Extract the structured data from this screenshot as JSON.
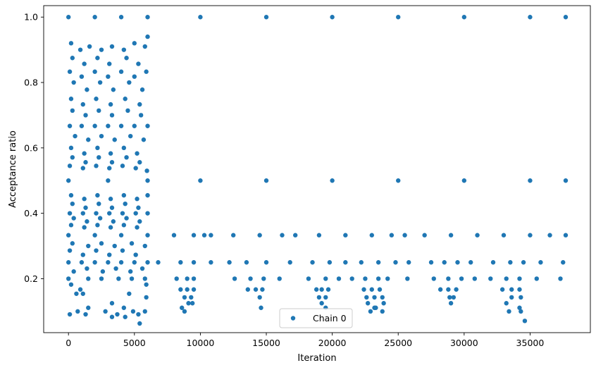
{
  "chart_data": {
    "type": "scatter",
    "xlabel": "Iteration",
    "ylabel": "Acceptance ratio",
    "xlim": [
      -1880,
      39570
    ],
    "ylim": [
      0.035,
      1.035
    ],
    "x_ticks": [
      0,
      5000,
      10000,
      15000,
      20000,
      25000,
      30000,
      35000
    ],
    "x_tick_labels": [
      "0",
      "5000",
      "10000",
      "15000",
      "20000",
      "25000",
      "30000",
      "35000"
    ],
    "y_ticks": [
      0.2,
      0.4,
      0.6,
      0.8,
      1.0
    ],
    "y_tick_labels": [
      "0.2",
      "0.4",
      "0.6",
      "0.8",
      "1.0"
    ],
    "grid": false,
    "legend_position": "lower center",
    "series": [
      {
        "name": "Chain 0",
        "color": "#1f77b4",
        "marker": "circle",
        "points": [
          [
            0,
            1.0
          ],
          [
            2000,
            1.0
          ],
          [
            4000,
            1.0
          ],
          [
            6000,
            1.0
          ],
          [
            10000,
            1.0
          ],
          [
            15000,
            1.0
          ],
          [
            20000,
            1.0
          ],
          [
            25000,
            1.0
          ],
          [
            30000,
            1.0
          ],
          [
            35000,
            1.0
          ],
          [
            37700,
            1.0
          ],
          [
            200,
            0.92
          ],
          [
            900,
            0.9
          ],
          [
            1600,
            0.91
          ],
          [
            2500,
            0.9
          ],
          [
            3300,
            0.91
          ],
          [
            4200,
            0.9
          ],
          [
            5000,
            0.92
          ],
          [
            5800,
            0.91
          ],
          [
            6000,
            0.94
          ],
          [
            300,
            0.875
          ],
          [
            1200,
            0.857
          ],
          [
            2200,
            0.875
          ],
          [
            3100,
            0.857
          ],
          [
            4400,
            0.875
          ],
          [
            5300,
            0.857
          ],
          [
            100,
            0.833
          ],
          [
            1000,
            0.818
          ],
          [
            2000,
            0.833
          ],
          [
            3000,
            0.818
          ],
          [
            4000,
            0.833
          ],
          [
            5000,
            0.818
          ],
          [
            5900,
            0.833
          ],
          [
            400,
            0.8
          ],
          [
            1400,
            0.778
          ],
          [
            2400,
            0.8
          ],
          [
            3400,
            0.778
          ],
          [
            4600,
            0.8
          ],
          [
            5600,
            0.778
          ],
          [
            200,
            0.75
          ],
          [
            1100,
            0.733
          ],
          [
            2100,
            0.75
          ],
          [
            3200,
            0.733
          ],
          [
            4300,
            0.75
          ],
          [
            5400,
            0.733
          ],
          [
            300,
            0.714
          ],
          [
            1300,
            0.7
          ],
          [
            2300,
            0.714
          ],
          [
            3300,
            0.7
          ],
          [
            4500,
            0.714
          ],
          [
            5500,
            0.7
          ],
          [
            100,
            0.667
          ],
          [
            1000,
            0.667
          ],
          [
            2000,
            0.667
          ],
          [
            3000,
            0.667
          ],
          [
            4000,
            0.667
          ],
          [
            5000,
            0.667
          ],
          [
            6000,
            0.667
          ],
          [
            500,
            0.636
          ],
          [
            1500,
            0.625
          ],
          [
            2500,
            0.636
          ],
          [
            3500,
            0.625
          ],
          [
            4700,
            0.636
          ],
          [
            5700,
            0.625
          ],
          [
            200,
            0.6
          ],
          [
            1200,
            0.583
          ],
          [
            2200,
            0.6
          ],
          [
            3200,
            0.583
          ],
          [
            4200,
            0.6
          ],
          [
            5200,
            0.583
          ],
          [
            300,
            0.571
          ],
          [
            1300,
            0.556
          ],
          [
            2300,
            0.571
          ],
          [
            3300,
            0.556
          ],
          [
            4400,
            0.571
          ],
          [
            5400,
            0.556
          ],
          [
            100,
            0.545
          ],
          [
            1100,
            0.538
          ],
          [
            2100,
            0.545
          ],
          [
            3100,
            0.538
          ],
          [
            4100,
            0.545
          ],
          [
            5100,
            0.538
          ],
          [
            5950,
            0.53
          ],
          [
            0,
            0.5
          ],
          [
            3000,
            0.5
          ],
          [
            6000,
            0.5
          ],
          [
            10000,
            0.5
          ],
          [
            15000,
            0.5
          ],
          [
            20000,
            0.5
          ],
          [
            25000,
            0.5
          ],
          [
            30000,
            0.5
          ],
          [
            35000,
            0.5
          ],
          [
            37700,
            0.5
          ],
          [
            200,
            0.455
          ],
          [
            1200,
            0.444
          ],
          [
            2200,
            0.455
          ],
          [
            3200,
            0.444
          ],
          [
            4200,
            0.455
          ],
          [
            5200,
            0.444
          ],
          [
            6000,
            0.455
          ],
          [
            300,
            0.429
          ],
          [
            1300,
            0.417
          ],
          [
            2300,
            0.429
          ],
          [
            3300,
            0.417
          ],
          [
            4300,
            0.429
          ],
          [
            5300,
            0.417
          ],
          [
            100,
            0.4
          ],
          [
            1100,
            0.4
          ],
          [
            2100,
            0.4
          ],
          [
            3100,
            0.4
          ],
          [
            4100,
            0.4
          ],
          [
            5100,
            0.4
          ],
          [
            6000,
            0.4
          ],
          [
            400,
            0.385
          ],
          [
            1400,
            0.375
          ],
          [
            2400,
            0.385
          ],
          [
            3400,
            0.375
          ],
          [
            4400,
            0.385
          ],
          [
            5400,
            0.375
          ],
          [
            200,
            0.364
          ],
          [
            1200,
            0.357
          ],
          [
            2200,
            0.364
          ],
          [
            3200,
            0.357
          ],
          [
            4200,
            0.364
          ],
          [
            5200,
            0.357
          ],
          [
            0,
            0.333
          ],
          [
            2000,
            0.333
          ],
          [
            4000,
            0.333
          ],
          [
            6000,
            0.333
          ],
          [
            8000,
            0.333
          ],
          [
            9500,
            0.333
          ],
          [
            10300,
            0.333
          ],
          [
            10800,
            0.333
          ],
          [
            12500,
            0.333
          ],
          [
            14500,
            0.333
          ],
          [
            16200,
            0.333
          ],
          [
            17200,
            0.333
          ],
          [
            19000,
            0.333
          ],
          [
            21000,
            0.333
          ],
          [
            23000,
            0.333
          ],
          [
            24500,
            0.333
          ],
          [
            25500,
            0.333
          ],
          [
            27000,
            0.333
          ],
          [
            29000,
            0.333
          ],
          [
            31000,
            0.333
          ],
          [
            33000,
            0.333
          ],
          [
            35000,
            0.333
          ],
          [
            36500,
            0.333
          ],
          [
            37700,
            0.333
          ],
          [
            300,
            0.308
          ],
          [
            1500,
            0.3
          ],
          [
            2500,
            0.308
          ],
          [
            3500,
            0.3
          ],
          [
            4800,
            0.308
          ],
          [
            5800,
            0.3
          ],
          [
            100,
            0.286
          ],
          [
            1100,
            0.273
          ],
          [
            2100,
            0.286
          ],
          [
            3100,
            0.273
          ],
          [
            4100,
            0.286
          ],
          [
            5100,
            0.273
          ],
          [
            0,
            0.25
          ],
          [
            1000,
            0.25
          ],
          [
            2000,
            0.25
          ],
          [
            3000,
            0.25
          ],
          [
            4000,
            0.25
          ],
          [
            5000,
            0.25
          ],
          [
            6000,
            0.25
          ],
          [
            6800,
            0.25
          ],
          [
            8500,
            0.25
          ],
          [
            9500,
            0.25
          ],
          [
            10800,
            0.25
          ],
          [
            12200,
            0.25
          ],
          [
            13500,
            0.25
          ],
          [
            15000,
            0.25
          ],
          [
            16800,
            0.25
          ],
          [
            18500,
            0.25
          ],
          [
            19800,
            0.25
          ],
          [
            21000,
            0.25
          ],
          [
            22200,
            0.25
          ],
          [
            23500,
            0.25
          ],
          [
            24800,
            0.25
          ],
          [
            25800,
            0.25
          ],
          [
            27500,
            0.25
          ],
          [
            28500,
            0.25
          ],
          [
            29500,
            0.25
          ],
          [
            30500,
            0.25
          ],
          [
            32200,
            0.25
          ],
          [
            33500,
            0.25
          ],
          [
            34500,
            0.25
          ],
          [
            35800,
            0.25
          ],
          [
            37500,
            0.25
          ],
          [
            400,
            0.222
          ],
          [
            1400,
            0.231
          ],
          [
            2600,
            0.222
          ],
          [
            3600,
            0.231
          ],
          [
            4700,
            0.222
          ],
          [
            5600,
            0.231
          ],
          [
            0,
            0.2
          ],
          [
            1500,
            0.2
          ],
          [
            2500,
            0.2
          ],
          [
            3800,
            0.2
          ],
          [
            4800,
            0.2
          ],
          [
            5800,
            0.2
          ],
          [
            8200,
            0.2
          ],
          [
            9000,
            0.2
          ],
          [
            9500,
            0.2
          ],
          [
            12600,
            0.2
          ],
          [
            13800,
            0.2
          ],
          [
            14800,
            0.2
          ],
          [
            16000,
            0.2
          ],
          [
            18200,
            0.2
          ],
          [
            19500,
            0.2
          ],
          [
            20500,
            0.2
          ],
          [
            21500,
            0.2
          ],
          [
            22500,
            0.2
          ],
          [
            23500,
            0.2
          ],
          [
            24200,
            0.2
          ],
          [
            25700,
            0.2
          ],
          [
            27700,
            0.2
          ],
          [
            28800,
            0.2
          ],
          [
            29800,
            0.2
          ],
          [
            30800,
            0.2
          ],
          [
            32000,
            0.2
          ],
          [
            33200,
            0.2
          ],
          [
            34200,
            0.2
          ],
          [
            35500,
            0.2
          ],
          [
            37300,
            0.2
          ],
          [
            200,
            0.182
          ],
          [
            5900,
            0.182
          ],
          [
            900,
            0.167
          ],
          [
            8500,
            0.167
          ],
          [
            9000,
            0.167
          ],
          [
            9500,
            0.167
          ],
          [
            13600,
            0.167
          ],
          [
            14200,
            0.167
          ],
          [
            14700,
            0.167
          ],
          [
            18800,
            0.167
          ],
          [
            19200,
            0.167
          ],
          [
            19700,
            0.167
          ],
          [
            22400,
            0.167
          ],
          [
            23000,
            0.167
          ],
          [
            23600,
            0.167
          ],
          [
            28200,
            0.167
          ],
          [
            28800,
            0.167
          ],
          [
            29400,
            0.167
          ],
          [
            32900,
            0.167
          ],
          [
            33600,
            0.167
          ],
          [
            34200,
            0.167
          ],
          [
            600,
            0.154
          ],
          [
            1100,
            0.154
          ],
          [
            4600,
            0.154
          ],
          [
            5900,
            0.143
          ],
          [
            8800,
            0.143
          ],
          [
            9300,
            0.143
          ],
          [
            14500,
            0.143
          ],
          [
            19000,
            0.143
          ],
          [
            19500,
            0.143
          ],
          [
            22600,
            0.143
          ],
          [
            23200,
            0.143
          ],
          [
            23800,
            0.143
          ],
          [
            28900,
            0.143
          ],
          [
            29200,
            0.143
          ],
          [
            33600,
            0.143
          ],
          [
            34300,
            0.143
          ],
          [
            1500,
            0.111
          ],
          [
            3300,
            0.125
          ],
          [
            4200,
            0.111
          ],
          [
            8600,
            0.111
          ],
          [
            9100,
            0.125
          ],
          [
            9400,
            0.125
          ],
          [
            14600,
            0.111
          ],
          [
            19200,
            0.125
          ],
          [
            19500,
            0.111
          ],
          [
            22700,
            0.125
          ],
          [
            23200,
            0.111
          ],
          [
            23900,
            0.125
          ],
          [
            29000,
            0.125
          ],
          [
            33200,
            0.125
          ],
          [
            34200,
            0.111
          ],
          [
            100,
            0.091
          ],
          [
            700,
            0.1
          ],
          [
            1300,
            0.091
          ],
          [
            2800,
            0.1
          ],
          [
            3700,
            0.091
          ],
          [
            4300,
            0.083
          ],
          [
            4900,
            0.1
          ],
          [
            5300,
            0.091
          ],
          [
            5800,
            0.1
          ],
          [
            8800,
            0.1
          ],
          [
            22900,
            0.1
          ],
          [
            23300,
            0.111
          ],
          [
            23800,
            0.1
          ],
          [
            33400,
            0.1
          ],
          [
            34300,
            0.1
          ],
          [
            3300,
            0.083
          ],
          [
            5400,
            0.063
          ],
          [
            34600,
            0.071
          ]
        ]
      }
    ]
  }
}
